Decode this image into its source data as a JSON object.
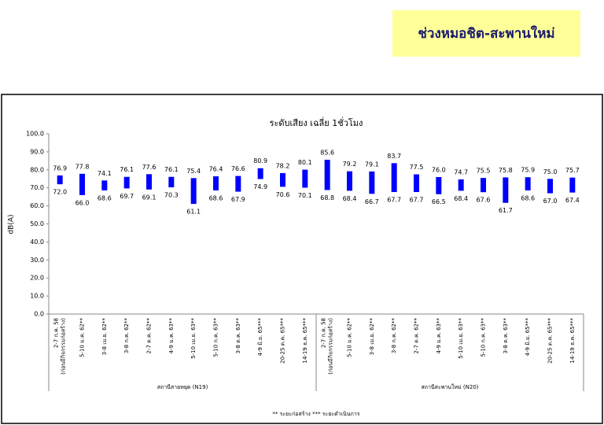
{
  "header": {
    "title": "ช่วงหมอชิต-สะพานใหม่"
  },
  "chart_data": {
    "type": "range-bar",
    "title": "ระดับเสียง เฉลี่ย 1ชั่วโมง",
    "y_label": "dB(A)",
    "color": "#0000ff",
    "ylim": [
      0,
      100
    ],
    "yticks": [
      {
        "value": 0,
        "label": "0.0"
      },
      {
        "value": 10,
        "label": "10.0"
      },
      {
        "value": 20,
        "label": "20.0"
      },
      {
        "value": 30,
        "label": "30.0"
      },
      {
        "value": 40,
        "label": "40.0"
      },
      {
        "value": 50,
        "label": "50.0"
      },
      {
        "value": 60,
        "label": "60.0"
      },
      {
        "value": 70,
        "label": "70.0"
      },
      {
        "value": 80,
        "label": "80.0"
      },
      {
        "value": 90,
        "label": "90.0"
      },
      {
        "value": 100,
        "label": "100.0"
      }
    ],
    "groups": [
      {
        "label": "สถานีสายหยุด (N19)",
        "categories": [
          "2-7 ก.ค. 58\n(ก่อนมีกิจกรรมก่อสร้าง)",
          "5-10 ม.ค. 62**",
          "3-8 เม.ย. 62**",
          "3-8 ก.ค. 62**",
          "2-7 ต.ค. 62**",
          "4-9 ม.ค. 63**",
          "5-10 เม.ย. 63**",
          "5-10 ก.ค. 63**",
          "3-8 ต.ค. 63**",
          "4-9 มิ.ย. 65***",
          "20-25 ต.ค. 65***",
          "14-19 ธ.ค. 65***"
        ],
        "series": [
          {
            "values": [
              76.9,
              77.8,
              74.1,
              76.1,
              77.6,
              76.1,
              75.4,
              76.4,
              76.6,
              80.9,
              78.2,
              80.1
            ],
            "value_labels": [
              "76.9",
              "77.8",
              "74.1",
              "76.1",
              "77.6",
              "76.1",
              "75.4",
              "76.4",
              "76.6",
              "80.9",
              "78.2",
              "80.1"
            ]
          },
          {
            "values": [
              72,
              66,
              68.6,
              69.7,
              69.1,
              70.3,
              61.1,
              68.6,
              67.9,
              74.9,
              70.6,
              70.1
            ],
            "value_labels": [
              "72.0",
              "66.0",
              "68.6",
              "69.7",
              "69.1",
              "70.3",
              "61.1",
              "68.6",
              "67.9",
              "74.9",
              "70.6",
              "70.1"
            ]
          }
        ]
      },
      {
        "label": "สถานีสะพานใหม่ (N20)",
        "categories": [
          "2-7 ก.ค. 58\n(ก่อนมีกิจกรรมก่อสร้าง)",
          "5-10 ม.ค. 62**",
          "3-8 เม.ย. 62**",
          "3-8 ก.ค. 62**",
          "2-7 ต.ค. 62**",
          "4-9 ม.ค. 63**",
          "5-10 เม.ย. 63**",
          "5-10 ก.ค. 63**",
          "3-8 ต.ค. 63**",
          "4-9 มิ.ย. 65***",
          "20-25 ต.ค. 65***",
          "14-19 ธ.ค. 65***"
        ],
        "series": [
          {
            "values": [
              85.6,
              79.2,
              79.1,
              83.7,
              77.5,
              76,
              74.7,
              75.5,
              75.8,
              75.9,
              75,
              75.7
            ],
            "value_labels": [
              "85.6",
              "79.2",
              "79.1",
              "83.7",
              "77.5",
              "76.0",
              "74.7",
              "75.5",
              "75.8",
              "75.9",
              "75.0",
              "75.7"
            ]
          },
          {
            "values": [
              68.8,
              68.4,
              66.7,
              67.7,
              67.7,
              66.5,
              68.4,
              67.6,
              61.7,
              68.6,
              67,
              67.4
            ],
            "value_labels": [
              "68.8",
              "68.4",
              "66.7",
              "67.7",
              "67.7",
              "66.5",
              "68.4",
              "67.6",
              "61.7",
              "68.6",
              "67.0",
              "67.4"
            ]
          }
        ]
      }
    ],
    "footnote": "** ระยะก่อสร้าง   *** ระยะดำเนินการ"
  }
}
